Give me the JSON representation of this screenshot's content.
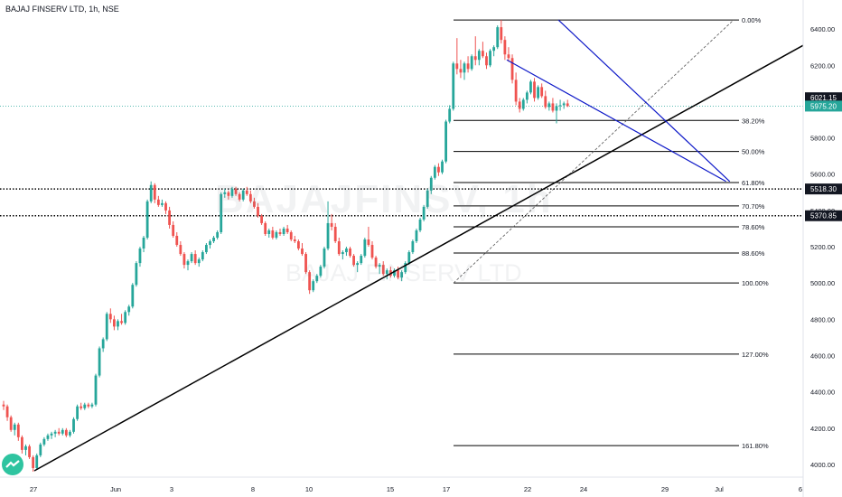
{
  "header": {
    "title": "BAJAJ FINSERV LTD, 1h, NSE"
  },
  "watermark": {
    "big": "BAJAJFINSV, 1h",
    "small": "BAJAJ FINSERV LTD"
  },
  "logo": {
    "icon": "tradingview-logo-icon"
  },
  "colors": {
    "up": "#26a69a",
    "down": "#ef5350",
    "wick_up": "#26a69a",
    "wick_down": "#ef5350",
    "fib": "#000000",
    "wedge": "#0d18c8",
    "trend": "#000000",
    "current_line": "#26a69a"
  },
  "chart_data": {
    "type": "candlestick",
    "title": "BAJAJ FINSERV LTD, 1h, NSE",
    "ylim": [
      3930,
      6560
    ],
    "y_ticks": [
      4000,
      4200,
      4400,
      4600,
      4800,
      5000,
      5200,
      5400,
      5600,
      5800,
      6000,
      6200,
      6400
    ],
    "x_tick_labels": [
      "27",
      "Jun",
      "3",
      "8",
      "10",
      "15",
      "17",
      "22",
      "24",
      "29",
      "Jul",
      "6"
    ],
    "bar_count": 180,
    "fib_retracement": {
      "high": 6450,
      "low": 5000,
      "levels": [
        {
          "label": "0.00%",
          "price": 6450
        },
        {
          "label": "38.20%",
          "price": 5896
        },
        {
          "label": "50.00%",
          "price": 5725
        },
        {
          "label": "61.80%",
          "price": 5554
        },
        {
          "label": "70.70%",
          "price": 5425
        },
        {
          "label": "78.60%",
          "price": 5310
        },
        {
          "label": "88.60%",
          "price": 5165
        },
        {
          "label": "100.00%",
          "price": 5000
        },
        {
          "label": "127.00%",
          "price": 4608
        },
        {
          "label": "161.80%",
          "price": 4104
        }
      ]
    },
    "horizontal_levels": [
      {
        "label": "5518.30",
        "price": 5518.3
      },
      {
        "label": "5370.85",
        "price": 5370.85
      }
    ],
    "price_badges": [
      {
        "label": "6021.15",
        "price": 6021.15,
        "style": "dark"
      },
      {
        "label": "5975.20",
        "price": 5975.2,
        "style": "teal"
      }
    ],
    "trend_line": {
      "from_bar": 0,
      "from_price": 3965,
      "to_bar": 176,
      "to_price": 5850
    },
    "wedge_lines": [
      {
        "from_bar": 112,
        "from_price": 6230,
        "to_bar": 158,
        "to_price": 5560
      },
      {
        "from_bar": 126,
        "from_price": 6450,
        "to_bar": 159,
        "to_price": 5560
      }
    ],
    "candles": [
      [
        4330,
        4350,
        4300,
        4320
      ],
      [
        4320,
        4330,
        4240,
        4260
      ],
      [
        4260,
        4270,
        4180,
        4190
      ],
      [
        4190,
        4230,
        4160,
        4220
      ],
      [
        4220,
        4230,
        4130,
        4150
      ],
      [
        4150,
        4160,
        4060,
        4080
      ],
      [
        4080,
        4110,
        4050,
        4100
      ],
      [
        4100,
        4110,
        4030,
        4040
      ],
      [
        4040,
        4050,
        3960,
        3980
      ],
      [
        3980,
        4060,
        3970,
        4050
      ],
      [
        4050,
        4120,
        4040,
        4110
      ],
      [
        4110,
        4150,
        4100,
        4140
      ],
      [
        4140,
        4170,
        4130,
        4160
      ],
      [
        4160,
        4180,
        4140,
        4170
      ],
      [
        4170,
        4190,
        4150,
        4180
      ],
      [
        4180,
        4200,
        4160,
        4170
      ],
      [
        4170,
        4200,
        4160,
        4190
      ],
      [
        4190,
        4200,
        4150,
        4160
      ],
      [
        4160,
        4190,
        4150,
        4180
      ],
      [
        4180,
        4260,
        4170,
        4250
      ],
      [
        4250,
        4330,
        4240,
        4320
      ],
      [
        4320,
        4340,
        4300,
        4310
      ],
      [
        4310,
        4340,
        4300,
        4330
      ],
      [
        4330,
        4340,
        4310,
        4320
      ],
      [
        4320,
        4340,
        4310,
        4330
      ],
      [
        4330,
        4500,
        4320,
        4490
      ],
      [
        4490,
        4650,
        4480,
        4640
      ],
      [
        4640,
        4700,
        4620,
        4690
      ],
      [
        4690,
        4840,
        4680,
        4830
      ],
      [
        4830,
        4860,
        4780,
        4800
      ],
      [
        4800,
        4820,
        4740,
        4760
      ],
      [
        4760,
        4800,
        4740,
        4790
      ],
      [
        4790,
        4830,
        4770,
        4780
      ],
      [
        4780,
        4850,
        4770,
        4840
      ],
      [
        4840,
        4880,
        4820,
        4870
      ],
      [
        4870,
        5000,
        4860,
        4990
      ],
      [
        4990,
        5120,
        4980,
        5110
      ],
      [
        5110,
        5200,
        5090,
        5190
      ],
      [
        5190,
        5260,
        5170,
        5250
      ],
      [
        5250,
        5460,
        5240,
        5450
      ],
      [
        5450,
        5560,
        5440,
        5540
      ],
      [
        5540,
        5550,
        5440,
        5460
      ],
      [
        5460,
        5480,
        5420,
        5430
      ],
      [
        5430,
        5460,
        5420,
        5440
      ],
      [
        5440,
        5450,
        5380,
        5400
      ],
      [
        5400,
        5420,
        5300,
        5320
      ],
      [
        5320,
        5340,
        5250,
        5260
      ],
      [
        5260,
        5280,
        5200,
        5210
      ],
      [
        5210,
        5230,
        5150,
        5160
      ],
      [
        5160,
        5170,
        5080,
        5100
      ],
      [
        5100,
        5130,
        5070,
        5120
      ],
      [
        5120,
        5170,
        5110,
        5160
      ],
      [
        5160,
        5180,
        5100,
        5110
      ],
      [
        5110,
        5140,
        5090,
        5130
      ],
      [
        5130,
        5180,
        5120,
        5170
      ],
      [
        5170,
        5220,
        5160,
        5210
      ],
      [
        5210,
        5240,
        5190,
        5230
      ],
      [
        5230,
        5260,
        5220,
        5250
      ],
      [
        5250,
        5290,
        5240,
        5280
      ],
      [
        5280,
        5500,
        5270,
        5490
      ],
      [
        5490,
        5520,
        5470,
        5500
      ],
      [
        5500,
        5510,
        5460,
        5480
      ],
      [
        5480,
        5530,
        5470,
        5520
      ],
      [
        5520,
        5530,
        5480,
        5490
      ],
      [
        5490,
        5500,
        5450,
        5460
      ],
      [
        5460,
        5520,
        5450,
        5510
      ],
      [
        5510,
        5530,
        5480,
        5490
      ],
      [
        5490,
        5510,
        5440,
        5450
      ],
      [
        5450,
        5470,
        5410,
        5420
      ],
      [
        5420,
        5440,
        5360,
        5370
      ],
      [
        5370,
        5380,
        5320,
        5330
      ],
      [
        5330,
        5340,
        5260,
        5270
      ],
      [
        5270,
        5300,
        5250,
        5290
      ],
      [
        5290,
        5310,
        5240,
        5250
      ],
      [
        5250,
        5290,
        5240,
        5280
      ],
      [
        5280,
        5300,
        5260,
        5270
      ],
      [
        5270,
        5310,
        5260,
        5300
      ],
      [
        5300,
        5320,
        5270,
        5280
      ],
      [
        5280,
        5290,
        5230,
        5240
      ],
      [
        5240,
        5260,
        5220,
        5230
      ],
      [
        5230,
        5240,
        5180,
        5190
      ],
      [
        5190,
        5220,
        5150,
        5160
      ],
      [
        5160,
        5170,
        5050,
        5060
      ],
      [
        5060,
        5070,
        4940,
        4960
      ],
      [
        4960,
        5020,
        4950,
        5010
      ],
      [
        5010,
        5050,
        5000,
        5040
      ],
      [
        5040,
        5100,
        5030,
        5090
      ],
      [
        5090,
        5200,
        5080,
        5190
      ],
      [
        5190,
        5450,
        5180,
        5330
      ],
      [
        5330,
        5380,
        5290,
        5310
      ],
      [
        5310,
        5330,
        5220,
        5230
      ],
      [
        5230,
        5250,
        5150,
        5160
      ],
      [
        5160,
        5180,
        5130,
        5170
      ],
      [
        5170,
        5200,
        5150,
        5190
      ],
      [
        5190,
        5200,
        5140,
        5150
      ],
      [
        5150,
        5160,
        5090,
        5100
      ],
      [
        5100,
        5120,
        5060,
        5110
      ],
      [
        5110,
        5160,
        5100,
        5150
      ],
      [
        5150,
        5250,
        5140,
        5240
      ],
      [
        5240,
        5310,
        5200,
        5210
      ],
      [
        5210,
        5230,
        5130,
        5140
      ],
      [
        5140,
        5150,
        5080,
        5090
      ],
      [
        5090,
        5110,
        5050,
        5100
      ],
      [
        5100,
        5120,
        5040,
        5050
      ],
      [
        5050,
        5080,
        5020,
        5070
      ],
      [
        5070,
        5090,
        5030,
        5040
      ],
      [
        5040,
        5080,
        5030,
        5070
      ],
      [
        5070,
        5090,
        5020,
        5030
      ],
      [
        5030,
        5070,
        5010,
        5060
      ],
      [
        5060,
        5120,
        5050,
        5110
      ],
      [
        5110,
        5180,
        5100,
        5170
      ],
      [
        5170,
        5240,
        5160,
        5230
      ],
      [
        5230,
        5300,
        5220,
        5290
      ],
      [
        5290,
        5360,
        5280,
        5350
      ],
      [
        5350,
        5430,
        5340,
        5420
      ],
      [
        5420,
        5520,
        5410,
        5510
      ],
      [
        5510,
        5590,
        5490,
        5580
      ],
      [
        5580,
        5650,
        5570,
        5640
      ],
      [
        5640,
        5660,
        5590,
        5610
      ],
      [
        5610,
        5680,
        5600,
        5670
      ],
      [
        5670,
        5900,
        5660,
        5890
      ],
      [
        5890,
        5980,
        5880,
        5960
      ],
      [
        5960,
        6220,
        5950,
        6210
      ],
      [
        6210,
        6350,
        6150,
        6180
      ],
      [
        6180,
        6230,
        6130,
        6160
      ],
      [
        6160,
        6220,
        6120,
        6210
      ],
      [
        6210,
        6250,
        6160,
        6180
      ],
      [
        6180,
        6260,
        6170,
        6250
      ],
      [
        6250,
        6360,
        6200,
        6230
      ],
      [
        6230,
        6290,
        6200,
        6280
      ],
      [
        6280,
        6330,
        6240,
        6250
      ],
      [
        6250,
        6270,
        6180,
        6200
      ],
      [
        6200,
        6290,
        6190,
        6280
      ],
      [
        6280,
        6310,
        6250,
        6300
      ],
      [
        6300,
        6420,
        6290,
        6410
      ],
      [
        6410,
        6450,
        6320,
        6340
      ],
      [
        6340,
        6360,
        6230,
        6260
      ],
      [
        6260,
        6300,
        6220,
        6240
      ],
      [
        6240,
        6260,
        6100,
        6120
      ],
      [
        6120,
        6160,
        5980,
        6000
      ],
      [
        6000,
        6020,
        5940,
        5960
      ],
      [
        5960,
        6020,
        5950,
        6010
      ],
      [
        6010,
        6060,
        5990,
        6050
      ],
      [
        6050,
        6120,
        6040,
        6110
      ],
      [
        6110,
        6130,
        6000,
        6020
      ],
      [
        6020,
        6090,
        6010,
        6080
      ],
      [
        6080,
        6100,
        6020,
        6030
      ],
      [
        6030,
        6060,
        5960,
        5970
      ],
      [
        5970,
        6000,
        5950,
        5990
      ],
      [
        5990,
        6020,
        5940,
        5950
      ],
      [
        5950,
        5990,
        5880,
        5975
      ],
      [
        5975,
        6010,
        5950,
        5980
      ],
      [
        5980,
        6000,
        5960,
        5990
      ],
      [
        5990,
        6010,
        5970,
        5975
      ]
    ]
  }
}
